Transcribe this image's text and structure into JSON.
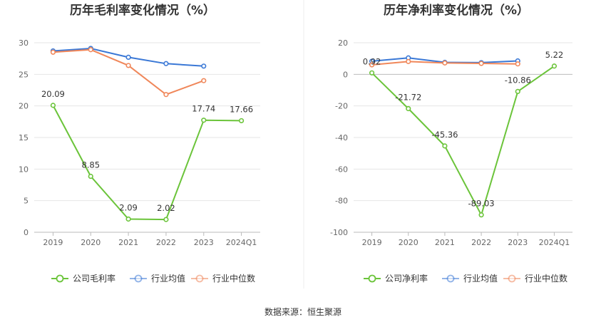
{
  "source_text": "数据来源：恒生聚源",
  "chart_data": [
    {
      "type": "line",
      "title": "历年毛利率变化情况（%）",
      "categories": [
        "2019",
        "2020",
        "2021",
        "2022",
        "2023",
        "2024Q1"
      ],
      "ylim": [
        0,
        30
      ],
      "yticks": [
        "0",
        "5",
        "10",
        "15",
        "20",
        "25",
        "30"
      ],
      "grid": true,
      "legend_position": "bottom",
      "series": [
        {
          "name": "公司毛利率",
          "color": "#6bc43a",
          "values": [
            20.09,
            8.85,
            2.09,
            2.02,
            17.74,
            17.66
          ],
          "labels": [
            "20.09",
            "8.85",
            "2.09",
            "2.02",
            "17.74",
            "17.66"
          ]
        },
        {
          "name": "行业均值",
          "color": "#3a78d6",
          "values": [
            28.7,
            29.1,
            27.7,
            26.7,
            26.3,
            null
          ]
        },
        {
          "name": "行业中位数",
          "color": "#f0875a",
          "values": [
            28.5,
            28.9,
            26.4,
            21.8,
            24.0,
            null
          ]
        }
      ]
    },
    {
      "type": "line",
      "title": "历年净利率变化情况（%）",
      "categories": [
        "2019",
        "2020",
        "2021",
        "2022",
        "2023",
        "2024Q1"
      ],
      "ylim": [
        -100,
        20
      ],
      "yticks": [
        "-100",
        "-80",
        "-60",
        "-40",
        "-20",
        "0",
        "20"
      ],
      "grid": true,
      "legend_position": "bottom",
      "series": [
        {
          "name": "公司净利率",
          "color": "#6bc43a",
          "values": [
            0.92,
            -21.72,
            -45.36,
            -89.03,
            -10.86,
            5.22
          ],
          "labels": [
            "0.92",
            "-21.72",
            "-45.36",
            "-89.03",
            "-10.86",
            "5.22"
          ]
        },
        {
          "name": "行业均值",
          "color": "#3a78d6",
          "values": [
            8.3,
            10.4,
            7.6,
            7.4,
            8.5,
            null
          ]
        },
        {
          "name": "行业中位数",
          "color": "#f0875a",
          "values": [
            6.0,
            8.1,
            7.2,
            6.9,
            6.6,
            null
          ]
        }
      ]
    }
  ]
}
